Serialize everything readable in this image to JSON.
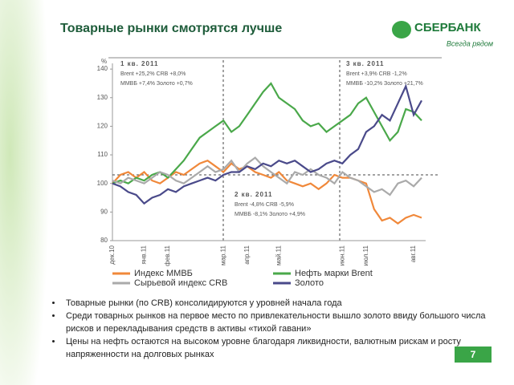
{
  "slide": {
    "title": "Товарные рынки смотрятся лучше",
    "logo": "СБЕРБАНК",
    "slogan": "Всегда рядом",
    "page": "7",
    "bullets": [
      "Товарные рынки (по CRB) консолидируются у уровней начала года",
      "Среди товарных рынков на первое место по привлекательности вышло золото ввиду большого числа рисков и перекладывания средств в активы «тихой гавани»",
      "Цены на нефть остаются на высоком уровне благодаря ликвидности, валютным рискам и росту напряженности на долговых рынках"
    ]
  },
  "chart_data": {
    "type": "line",
    "y_label": "%",
    "categories": [
      "дек.10",
      null,
      null,
      null,
      "янв.11",
      null,
      null,
      "фев.11",
      null,
      null,
      null,
      null,
      null,
      null,
      "мар.11",
      null,
      null,
      "апр.11",
      null,
      null,
      null,
      "май.11",
      null,
      null,
      null,
      null,
      null,
      null,
      null,
      "июн.11",
      null,
      null,
      "июл.11",
      null,
      null,
      null,
      null,
      null,
      "авг.11",
      null
    ],
    "series": [
      {
        "name": "Индекс ММВБ",
        "color": "#f0883a",
        "values": [
          100,
          103,
          104,
          102,
          104,
          101,
          100,
          102,
          104,
          103,
          105,
          107,
          108,
          106,
          104,
          107,
          105,
          106,
          104,
          103,
          102,
          104,
          101,
          100,
          99,
          100,
          98,
          100,
          103,
          102,
          102,
          101,
          100,
          91,
          87,
          88,
          86,
          88,
          89,
          88
        ]
      },
      {
        "name": "Нефть марки Brent",
        "color": "#4aa84a",
        "values": [
          100,
          101,
          100,
          102,
          101,
          103,
          104,
          102,
          105,
          108,
          112,
          116,
          118,
          120,
          122,
          118,
          120,
          124,
          128,
          132,
          135,
          130,
          128,
          126,
          122,
          120,
          121,
          118,
          120,
          122,
          124,
          128,
          130,
          125,
          120,
          115,
          118,
          126,
          125,
          122
        ]
      },
      {
        "name": "Сырьевой индекс CRB",
        "color": "#aaaaaa",
        "values": [
          101,
          100,
          102,
          101,
          100,
          102,
          104,
          103,
          101,
          100,
          102,
          104,
          106,
          104,
          105,
          108,
          104,
          107,
          109,
          106,
          104,
          102,
          100,
          104,
          103,
          105,
          103,
          102,
          100,
          104,
          102,
          101,
          99,
          97,
          98,
          96,
          100,
          101,
          99,
          102
        ]
      },
      {
        "name": "Золото",
        "color": "#4a4a8a",
        "values": [
          100,
          99,
          97,
          96,
          93,
          95,
          96,
          98,
          97,
          99,
          100,
          101,
          102,
          101,
          103,
          104,
          104,
          106,
          105,
          107,
          106,
          108,
          107,
          108,
          106,
          104,
          105,
          107,
          108,
          107,
          110,
          112,
          118,
          120,
          124,
          122,
          128,
          134,
          124,
          129
        ]
      }
    ],
    "ylim": [
      80,
      142
    ],
    "yticks": [
      80,
      90,
      100,
      110,
      120,
      130,
      140
    ],
    "hline": 103,
    "annotations": [
      {
        "lines": [
          "1 кв. 2011",
          "Brent +25,2%    CRB +8,0%",
          "ММВБ +7,4%    Золото +0,7%"
        ]
      },
      {
        "lines": [
          "2 кв. 2011",
          "Brent -4,8%    CRB -5,9%",
          "ММВБ -8,1%    Золото +4,9%"
        ]
      },
      {
        "lines": [
          "3 кв. 2011",
          "Brent +3,9%    CRB -1,2%",
          "ММВБ -10,2% Золото +21,7%"
        ]
      }
    ]
  }
}
